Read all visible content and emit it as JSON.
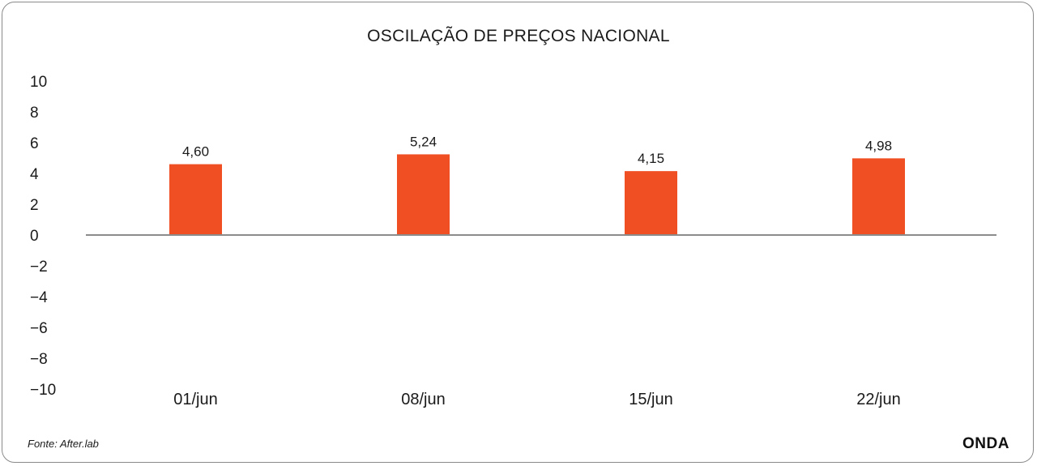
{
  "chart_data": {
    "type": "bar",
    "title": "OSCILAÇÃO DE PREÇOS NACIONAL",
    "categories": [
      "01/jun",
      "08/jun",
      "15/jun",
      "22/jun"
    ],
    "values": [
      4.6,
      5.24,
      4.15,
      4.98
    ],
    "value_labels": [
      "4,60",
      "5,24",
      "4,15",
      "4,98"
    ],
    "y_ticks": [
      "10",
      "8",
      "6",
      "4",
      "2",
      "0",
      "−2",
      "−4",
      "−6",
      "−8",
      "−10"
    ],
    "ylim": [
      -10,
      10
    ],
    "xlabel": "",
    "ylabel": "",
    "grid": false,
    "bar_color": "#f04e23",
    "axis_color": "#8c8c8c"
  },
  "footer": {
    "source": "Fonte: After.lab",
    "brand": "ONDA"
  }
}
